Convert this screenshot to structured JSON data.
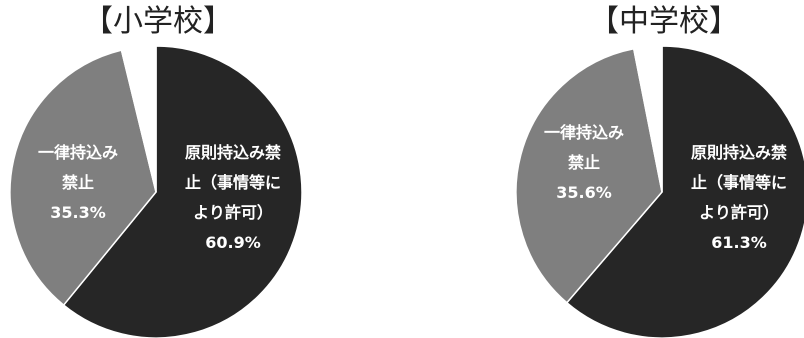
{
  "chart_data": [
    {
      "type": "pie",
      "title": "【小学校】",
      "slices": [
        {
          "label": "原則持込み禁\n止（事情等に\nより許可）",
          "value": 60.9,
          "value_text": "60.9%",
          "color": "#262626"
        },
        {
          "label": "一律持込み\n禁止",
          "value": 35.3,
          "value_text": "35.3%",
          "color": "#7f7f7f"
        },
        {
          "label": "",
          "value": 3.8,
          "value_text": "",
          "color": "#ffffff"
        }
      ]
    },
    {
      "type": "pie",
      "title": "【中学校】",
      "slices": [
        {
          "label": "原則持込み禁\n止（事情等に\nより許可）",
          "value": 61.3,
          "value_text": "61.3%",
          "color": "#262626"
        },
        {
          "label": "一律持込み\n禁止",
          "value": 35.6,
          "value_text": "35.6%",
          "color": "#7f7f7f"
        },
        {
          "label": "",
          "value": 3.1,
          "value_text": "",
          "color": "#ffffff"
        }
      ]
    }
  ]
}
